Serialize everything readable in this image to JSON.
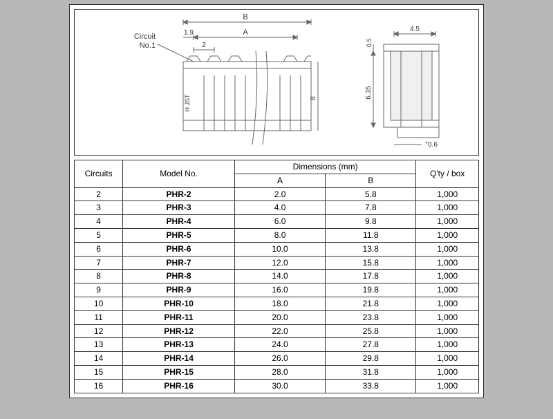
{
  "diagram": {
    "circuit_label": "Circuit",
    "circuit_no": "No.1",
    "dim_labels": {
      "A": "A",
      "B": "B",
      "p19": "1.9",
      "p2": "2",
      "h8": "8",
      "w45": "4.5",
      "t05": "0.5",
      "h635": "6.35",
      "d06": "°0.6",
      "hjst": "H JST"
    },
    "stroke": "#666666",
    "text_color": "#333333"
  },
  "table": {
    "headers": {
      "circuits": "Circuits",
      "model": "Model No.",
      "dimensions": "Dimensions (mm)",
      "dim_a": "A",
      "dim_b": "B",
      "qty": "Q'ty / box"
    },
    "rows": [
      {
        "c": "2",
        "m": "PHR-2",
        "a": "2.0",
        "b": "5.8",
        "q": "1,000"
      },
      {
        "c": "3",
        "m": "PHR-3",
        "a": "4.0",
        "b": "7.8",
        "q": "1,000"
      },
      {
        "c": "4",
        "m": "PHR-4",
        "a": "6.0",
        "b": "9.8",
        "q": "1,000"
      },
      {
        "c": "5",
        "m": "PHR-5",
        "a": "8.0",
        "b": "11.8",
        "q": "1,000"
      },
      {
        "c": "6",
        "m": "PHR-6",
        "a": "10.0",
        "b": "13.8",
        "q": "1,000"
      },
      {
        "c": "7",
        "m": "PHR-7",
        "a": "12.0",
        "b": "15.8",
        "q": "1,000"
      },
      {
        "c": "8",
        "m": "PHR-8",
        "a": "14.0",
        "b": "17.8",
        "q": "1,000"
      },
      {
        "c": "9",
        "m": "PHR-9",
        "a": "16.0",
        "b": "19.8",
        "q": "1,000"
      },
      {
        "c": "10",
        "m": "PHR-10",
        "a": "18.0",
        "b": "21.8",
        "q": "1,000"
      },
      {
        "c": "11",
        "m": "PHR-11",
        "a": "20.0",
        "b": "23.8",
        "q": "1,000"
      },
      {
        "c": "12",
        "m": "PHR-12",
        "a": "22.0",
        "b": "25.8",
        "q": "1,000"
      },
      {
        "c": "13",
        "m": "PHR-13",
        "a": "24.0",
        "b": "27.8",
        "q": "1,000"
      },
      {
        "c": "14",
        "m": "PHR-14",
        "a": "26.0",
        "b": "29.8",
        "q": "1,000"
      },
      {
        "c": "15",
        "m": "PHR-15",
        "a": "28.0",
        "b": "31.8",
        "q": "1,000"
      },
      {
        "c": "16",
        "m": "PHR-16",
        "a": "30.0",
        "b": "33.8",
        "q": "1,000"
      }
    ]
  }
}
